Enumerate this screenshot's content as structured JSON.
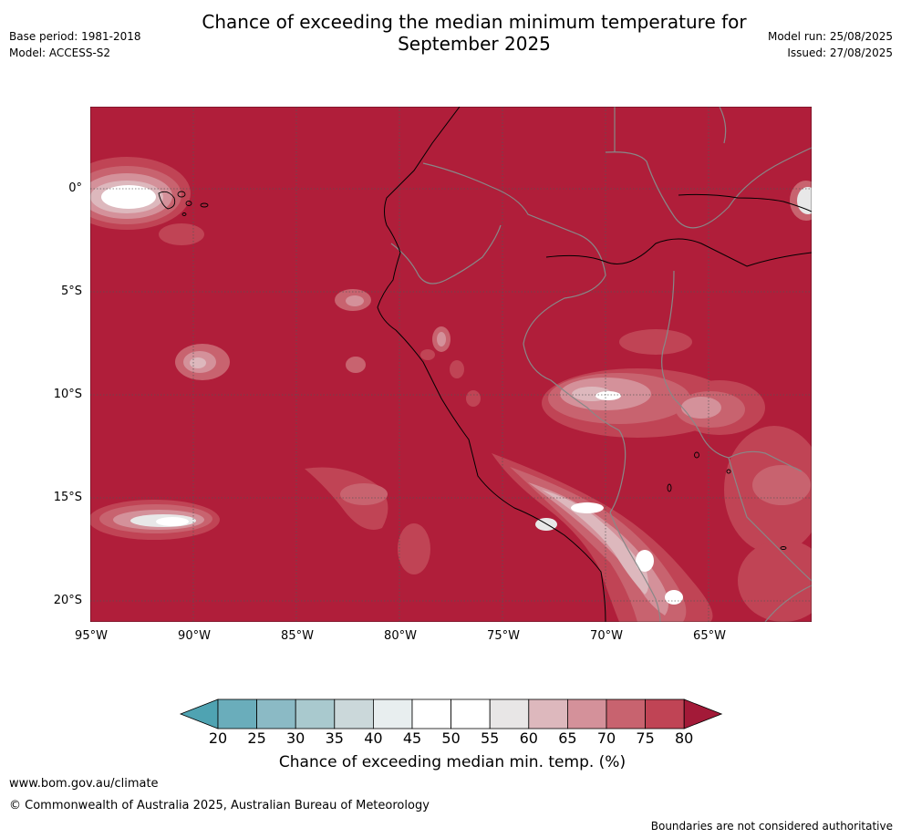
{
  "header": {
    "title_line1": "Chance of exceeding the median minimum temperature for",
    "title_line2": "September 2025",
    "base_period": "Base period: 1981-2018",
    "model": "Model: ACCESS-S2",
    "model_run": "Model run: 25/08/2025",
    "issued": "Issued: 27/08/2025"
  },
  "map": {
    "region": "western South America and eastern Pacific",
    "lat_labels": [
      "0°",
      "5°S",
      "10°S",
      "15°S",
      "20°S"
    ],
    "lon_labels": [
      "95°W",
      "90°W",
      "85°W",
      "80°W",
      "75°W",
      "70°W",
      "65°W"
    ],
    "background_category": "80",
    "colors": {
      "very_high": "#b01e3a",
      "c75": "#c04455",
      "c70": "#c8636f",
      "c65": "#d4919a",
      "c60": "#ddb8bd",
      "c55": "#e8e8e8",
      "white": "#ffffff",
      "coast": "#000000",
      "border": "#888888",
      "grid": "#555555"
    }
  },
  "colorbar": {
    "label": "Chance of exceeding median min. temp. (%)",
    "ticks": [
      "20",
      "25",
      "30",
      "35",
      "40",
      "45",
      "50",
      "55",
      "60",
      "65",
      "70",
      "75",
      "80"
    ],
    "low_extend_color": "#4fa3b2",
    "high_extend_color": "#a31a38",
    "segment_colors": [
      "#6aadbb",
      "#8bbac5",
      "#a9c9ce",
      "#cbd8da",
      "#e8eeef",
      "#ffffff",
      "#ffffff",
      "#e8e6e6",
      "#ddb8bd",
      "#d4919a",
      "#c8636f",
      "#c04455"
    ]
  },
  "footer": {
    "website": "www.bom.gov.au/climate",
    "copyright": "© Commonwealth of Australia 2025, Australian Bureau of Meteorology",
    "disclaimer": "Boundaries are not considered authoritative"
  }
}
